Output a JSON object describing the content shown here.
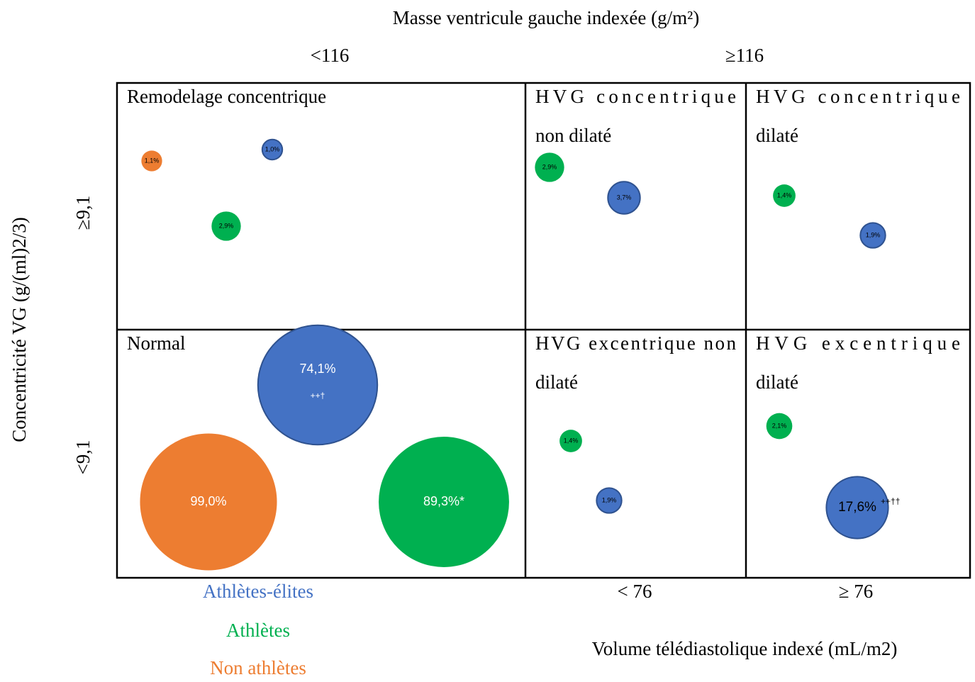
{
  "title": "Masse ventricule gauche indexée (g/m²)",
  "column_headers": [
    "<116",
    "≥116"
  ],
  "y_axis_label": "Concentricité VG (g/(ml)2/3)",
  "row_headers": [
    "≥9,1",
    "<9,1"
  ],
  "bottom_headers": [
    "< 76",
    "≥ 76"
  ],
  "x_axis_label": "Volume télédiastolique indexé (mL/m2)",
  "legend": [
    {
      "name": "Athlètes-élites",
      "color": "#4472c4"
    },
    {
      "name": "Athlètes",
      "color": "#00b050"
    },
    {
      "name": "Non athlètes",
      "color": "#ed7d31"
    }
  ],
  "cells": [
    {
      "lines": [
        "Remodelage concentrique"
      ],
      "bubbles": [
        {
          "value": 1.1,
          "label": "1,1%",
          "color": "#ed7d31"
        },
        {
          "value": 1.0,
          "label": "1,0%",
          "color": "#4472c4",
          "stroke": "#2f528f"
        },
        {
          "value": 2.9,
          "label": "2,9%",
          "color": "#00b050"
        }
      ]
    },
    {
      "lines": [
        "HVG concentrique",
        "non dilaté"
      ],
      "bubbles": [
        {
          "value": 2.9,
          "label": "2,9%",
          "color": "#00b050"
        },
        {
          "value": 3.7,
          "label": "3,7%",
          "color": "#4472c4",
          "stroke": "#2f528f"
        }
      ]
    },
    {
      "lines": [
        "HVG concentrique",
        "dilaté"
      ],
      "bubbles": [
        {
          "value": 1.4,
          "label": "1,4%",
          "color": "#00b050"
        },
        {
          "value": 1.9,
          "label": "1,9%",
          "color": "#4472c4",
          "stroke": "#2f528f"
        }
      ]
    },
    {
      "lines": [
        "Normal"
      ],
      "bubbles": [
        {
          "value": 74.1,
          "label": "74,1%",
          "annotation": "++†",
          "color": "#4472c4",
          "stroke": "#2f528f"
        },
        {
          "value": 99.0,
          "label": "99,0%",
          "color": "#ed7d31"
        },
        {
          "value": 89.3,
          "label": "89,3%*",
          "color": "#00b050"
        }
      ]
    },
    {
      "lines": [
        "HVG excentrique non",
        "dilaté"
      ],
      "bubbles": [
        {
          "value": 1.4,
          "label": "1,4%",
          "color": "#00b050"
        },
        {
          "value": 1.9,
          "label": "1,9%",
          "color": "#4472c4",
          "stroke": "#2f528f"
        }
      ]
    },
    {
      "lines": [
        "HVG excentrique",
        "dilaté"
      ],
      "bubbles": [
        {
          "value": 2.1,
          "label": "2,1%",
          "color": "#00b050"
        },
        {
          "value": 17.6,
          "label": "17,6%",
          "annotation": "++††",
          "color": "#4472c4",
          "stroke": "#2f528f"
        }
      ]
    }
  ]
}
